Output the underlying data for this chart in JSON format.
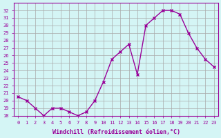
{
  "x": [
    0,
    1,
    2,
    3,
    4,
    5,
    6,
    7,
    8,
    9,
    10,
    11,
    12,
    13,
    14,
    15,
    16,
    17,
    18,
    19,
    20,
    21,
    22,
    23
  ],
  "y": [
    20.5,
    20.0,
    19.0,
    18.0,
    19.0,
    19.0,
    18.5,
    18.0,
    18.5,
    20.0,
    22.5,
    25.5,
    26.5,
    27.5,
    23.5,
    30.0,
    31.0,
    32.0,
    32.0,
    31.5,
    29.0,
    27.0,
    25.5,
    24.5
  ],
  "xlabel": "Windchill (Refroidissement éolien,°C)",
  "ylim": [
    18,
    33
  ],
  "yticks": [
    18,
    19,
    20,
    21,
    22,
    23,
    24,
    25,
    26,
    27,
    28,
    29,
    30,
    31,
    32
  ],
  "xticks": [
    0,
    1,
    2,
    3,
    4,
    5,
    6,
    7,
    8,
    9,
    10,
    11,
    12,
    13,
    14,
    15,
    16,
    17,
    18,
    19,
    20,
    21,
    22,
    23
  ],
  "line_color": "#990099",
  "marker": "x",
  "bg_color": "#d4f5f5",
  "grid_color": "#aaaaaa",
  "font_color": "#990099"
}
